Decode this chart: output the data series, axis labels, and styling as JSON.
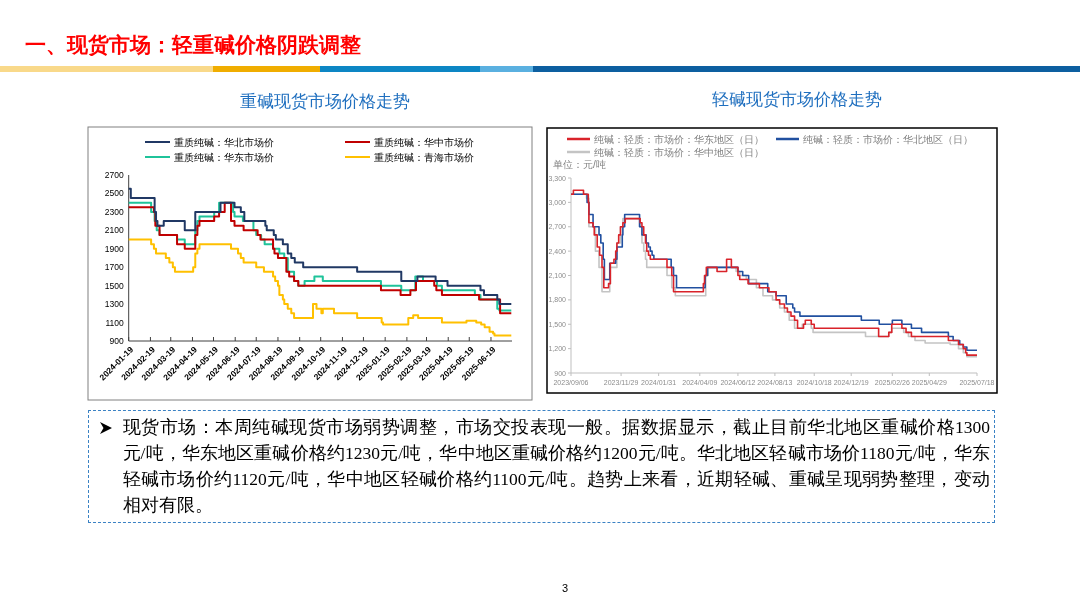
{
  "chart_data": [
    {
      "type": "other",
      "title": "一、现货市场：轻重碱价格阴跌调整"
    },
    {
      "type": "step",
      "title": "重碱现货市场价格走势",
      "xlim": [
        "2024-01-19",
        "2025-07-19"
      ],
      "xticks": [
        "2024-01-19",
        "2024-02-19",
        "2024-03-19",
        "2024-04-19",
        "2024-05-19",
        "2024-06-19",
        "2024-07-19",
        "2024-08-19",
        "2024-09-19",
        "2024-10-19",
        "2024-11-19",
        "2024-12-19",
        "2025-01-19",
        "2025-02-19",
        "2025-03-19",
        "2025-04-19",
        "2025-05-19",
        "2025-06-19"
      ],
      "ylim": [
        900,
        2700
      ],
      "yticks": [
        900,
        1100,
        1300,
        1500,
        1700,
        1900,
        2100,
        2300,
        2500,
        2700
      ],
      "legend": "top",
      "series": [
        {
          "name": "重质纯碱：华北市场价",
          "color": "#203864",
          "x": [
            "2024-01-19",
            "2024-01-22",
            "2024-02-25",
            "2024-02-27",
            "2024-02-29",
            "2024-03-09",
            "2024-04-08",
            "2024-04-23",
            "2024-05-29",
            "2024-06-18",
            "2024-06-27",
            "2024-07-02",
            "2024-08-01",
            "2024-08-03",
            "2024-08-13",
            "2024-08-16",
            "2024-08-26",
            "2024-09-02",
            "2024-09-07",
            "2024-09-12",
            "2024-09-24",
            "2024-12-10",
            "2025-02-11",
            "2025-03-06",
            "2025-04-01",
            "2025-04-18",
            "2025-06-04",
            "2025-06-09",
            "2025-06-28",
            "2025-07-01",
            "2025-07-18"
          ],
          "values": [
            2550,
            2450,
            2300,
            2200,
            2150,
            2200,
            2100,
            2300,
            2400,
            2350,
            2300,
            2200,
            2150,
            2100,
            2050,
            2000,
            1950,
            1850,
            1800,
            1750,
            1700,
            1650,
            1550,
            1600,
            1550,
            1500,
            1450,
            1400,
            1350,
            1300,
            1300
          ]
        },
        {
          "name": "重质纯碱：华中市场价",
          "color": "#c00000",
          "x": [
            "2024-01-19",
            "2024-02-24",
            "2024-02-26",
            "2024-03-03",
            "2024-03-28",
            "2024-04-08",
            "2024-04-23",
            "2024-04-26",
            "2024-04-29",
            "2024-05-20",
            "2024-05-27",
            "2024-06-04",
            "2024-06-13",
            "2024-06-18",
            "2024-07-01",
            "2024-07-21",
            "2024-07-25",
            "2024-08-12",
            "2024-08-14",
            "2024-08-19",
            "2024-08-31",
            "2024-09-04",
            "2024-09-11",
            "2024-09-17",
            "2025-01-13",
            "2025-02-10",
            "2025-02-24",
            "2025-03-04",
            "2025-03-30",
            "2025-04-02",
            "2025-04-10",
            "2025-06-02",
            "2025-07-02",
            "2025-07-18"
          ],
          "values": [
            2350,
            2300,
            2150,
            2050,
            1950,
            1900,
            2050,
            2150,
            2200,
            2250,
            2300,
            2400,
            2200,
            2150,
            2100,
            2050,
            2000,
            1900,
            1850,
            1800,
            1650,
            1600,
            1550,
            1500,
            1450,
            1400,
            1450,
            1550,
            1500,
            1450,
            1400,
            1350,
            1200,
            1200
          ]
        },
        {
          "name": "重质纯碱：华东市场价",
          "color": "#1fc39a",
          "x": [
            "2024-01-19",
            "2024-02-20",
            "2024-02-25",
            "2024-02-28",
            "2024-03-03",
            "2024-03-28",
            "2024-04-08",
            "2024-04-23",
            "2024-04-26",
            "2024-04-29",
            "2024-05-20",
            "2024-05-27",
            "2024-06-16",
            "2024-06-18",
            "2024-06-30",
            "2024-07-15",
            "2024-07-19",
            "2024-07-26",
            "2024-07-31",
            "2024-08-12",
            "2024-08-21",
            "2024-08-28",
            "2024-09-02",
            "2024-09-11",
            "2024-09-17",
            "2024-09-26",
            "2024-10-10",
            "2024-10-22",
            "2025-01-13",
            "2025-02-11",
            "2025-03-03",
            "2025-03-14",
            "2025-04-03",
            "2025-04-10",
            "2025-05-27",
            "2025-06-04",
            "2025-06-28",
            "2025-07-01",
            "2025-07-18"
          ],
          "values": [
            2400,
            2300,
            2200,
            2100,
            2050,
            2000,
            1950,
            2100,
            2200,
            2250,
            2300,
            2400,
            2300,
            2250,
            2200,
            2100,
            2050,
            2000,
            1950,
            1900,
            1850,
            1800,
            1650,
            1550,
            1500,
            1550,
            1600,
            1550,
            1500,
            1450,
            1600,
            1550,
            1500,
            1450,
            1400,
            1350,
            1250,
            1230,
            1230
          ]
        },
        {
          "name": "重质纯碱：青海市场价",
          "color": "#ffc000",
          "x": [
            "2024-01-19",
            "2024-02-20",
            "2024-02-24",
            "2024-02-27",
            "2024-03-12",
            "2024-03-17",
            "2024-03-22",
            "2024-03-25",
            "2024-04-20",
            "2024-04-23",
            "2024-04-26",
            "2024-04-29",
            "2024-06-13",
            "2024-06-23",
            "2024-06-27",
            "2024-07-01",
            "2024-07-19",
            "2024-07-30",
            "2024-08-12",
            "2024-08-15",
            "2024-08-19",
            "2024-08-21",
            "2024-08-26",
            "2024-08-28",
            "2024-09-02",
            "2024-09-07",
            "2024-09-11",
            "2024-10-08",
            "2024-10-13",
            "2024-10-20",
            "2024-10-22",
            "2024-11-07",
            "2024-12-10",
            "2025-01-14",
            "2025-01-16",
            "2025-02-21",
            "2025-02-28",
            "2025-03-07",
            "2025-04-10",
            "2025-05-15",
            "2025-05-29",
            "2025-06-05",
            "2025-06-10",
            "2025-06-17",
            "2025-06-22",
            "2025-06-24",
            "2025-07-18"
          ],
          "values": [
            2000,
            1950,
            1900,
            1850,
            1800,
            1750,
            1700,
            1650,
            1700,
            1850,
            1900,
            1950,
            1900,
            1850,
            1800,
            1750,
            1700,
            1650,
            1600,
            1550,
            1500,
            1400,
            1350,
            1300,
            1250,
            1200,
            1150,
            1300,
            1250,
            1200,
            1250,
            1200,
            1150,
            1100,
            1080,
            1150,
            1180,
            1150,
            1100,
            1120,
            1100,
            1080,
            1050,
            1000,
            980,
            960,
            960
          ]
        }
      ]
    },
    {
      "type": "step",
      "title": "轻碱现货市场价格走势",
      "ylabel": "单位：元/吨",
      "xlim": [
        "2023-09-06",
        "2025-07-18"
      ],
      "xticks": [
        {
          "value": "2023-09-06",
          "label": "2023/09/06"
        },
        {
          "value": "2023-11-29",
          "label": "2023/11/29"
        },
        {
          "value": "2024-01-31",
          "label": "2024/01/31"
        },
        {
          "value": "2024-04-09",
          "label": "2024/04/09"
        },
        {
          "value": "2024-06-12",
          "label": "2024/06/12"
        },
        {
          "value": "2024-08-13",
          "label": "2024/08/13"
        },
        {
          "value": "2024-10-18",
          "label": "2024/10/18"
        },
        {
          "value": "2024-12-19",
          "label": "2024/12/19"
        },
        {
          "value": "2025-02-26",
          "label": "2025/02/26"
        },
        {
          "value": "2025-04-29",
          "label": "2025/04/29"
        },
        {
          "value": "2025-07-18",
          "label": "2025/07/18"
        }
      ],
      "ylim": [
        900,
        3300
      ],
      "yticks": [
        900,
        {
          "value": 1200,
          "label": "1,200"
        },
        {
          "value": 1500,
          "label": "1,500"
        },
        {
          "value": 1800,
          "label": "1,800"
        },
        {
          "value": 2100,
          "label": "2,100"
        },
        {
          "value": 2400,
          "label": "2,400"
        },
        {
          "value": 2700,
          "label": "2,700"
        },
        {
          "value": 3000,
          "label": "3,000"
        },
        {
          "value": 3300,
          "label": "3,300"
        }
      ],
      "legend": "top",
      "series": [
        {
          "name": "纯碱：轻质：市场价：华东地区（日）",
          "color": "#d9232a",
          "x": [
            "2023-09-06",
            "2023-09-10",
            "2023-09-27",
            "2023-10-05",
            "2023-10-06",
            "2023-10-13",
            "2023-10-15",
            "2023-10-20",
            "2023-10-24",
            "2023-10-28",
            "2023-10-31",
            "2023-11-08",
            "2023-11-11",
            "2023-11-17",
            "2023-11-20",
            "2023-11-22",
            "2023-11-25",
            "2023-11-28",
            "2023-12-02",
            "2023-12-06",
            "2023-12-31",
            "2024-01-03",
            "2024-01-06",
            "2024-01-09",
            "2024-01-11",
            "2024-01-14",
            "2024-01-17",
            "2024-02-14",
            "2024-02-22",
            "2024-02-25",
            "2024-04-15",
            "2024-04-17",
            "2024-04-20",
            "2024-05-08",
            "2024-05-24",
            "2024-06-01",
            "2024-06-12",
            "2024-06-15",
            "2024-06-29",
            "2024-07-18",
            "2024-08-03",
            "2024-08-15",
            "2024-08-21",
            "2024-08-29",
            "2024-09-03",
            "2024-09-09",
            "2024-09-15",
            "2024-09-20",
            "2024-09-30",
            "2024-10-03",
            "2024-10-13",
            "2024-10-18",
            "2025-02-03",
            "2025-02-20",
            "2025-02-25",
            "2025-03-14",
            "2025-03-21",
            "2025-03-30",
            "2025-05-31",
            "2025-06-17",
            "2025-06-25",
            "2025-06-29",
            "2025-07-01",
            "2025-07-18"
          ],
          "values": [
            3100,
            3150,
            3100,
            3000,
            2750,
            2700,
            2600,
            2450,
            2350,
            2200,
            1950,
            2000,
            2250,
            2300,
            2400,
            2500,
            2600,
            2700,
            2750,
            2800,
            2750,
            2700,
            2600,
            2500,
            2400,
            2350,
            2300,
            2200,
            2100,
            1900,
            2000,
            2100,
            2200,
            2150,
            2300,
            2200,
            2100,
            2050,
            2000,
            1950,
            1900,
            1800,
            1750,
            1700,
            1650,
            1600,
            1550,
            1450,
            1500,
            1550,
            1500,
            1450,
            1350,
            1400,
            1500,
            1450,
            1400,
            1350,
            1300,
            1250,
            1200,
            1150,
            1120,
            1120
          ]
        },
        {
          "name": "纯碱：轻质：市场价：华北地区（日）",
          "color": "#2150a0",
          "x": [
            "2023-09-06",
            "2023-10-03",
            "2023-10-06",
            "2023-10-13",
            "2023-10-23",
            "2023-10-26",
            "2023-10-30",
            "2023-11-01",
            "2023-11-10",
            "2023-11-20",
            "2023-11-22",
            "2023-12-01",
            "2023-12-02",
            "2023-12-05",
            "2023-12-30",
            "2024-01-03",
            "2024-01-10",
            "2024-01-14",
            "2024-01-17",
            "2024-01-20",
            "2024-01-23",
            "2024-02-21",
            "2024-02-25",
            "2024-03-01",
            "2024-04-18",
            "2024-04-22",
            "2024-06-12",
            "2024-06-20",
            "2024-06-30",
            "2024-08-01",
            "2024-08-15",
            "2024-09-01",
            "2024-09-12",
            "2024-09-15",
            "2024-09-24",
            "2025-01-05",
            "2025-02-04",
            "2025-02-26",
            "2025-03-14",
            "2025-03-30",
            "2025-04-16",
            "2025-05-31",
            "2025-06-08",
            "2025-06-19",
            "2025-06-25",
            "2025-07-01",
            "2025-07-18"
          ],
          "values": [
            3100,
            3000,
            2850,
            2700,
            2600,
            2500,
            2300,
            2050,
            2250,
            2300,
            2450,
            2600,
            2700,
            2850,
            2700,
            2600,
            2500,
            2450,
            2400,
            2350,
            2300,
            2200,
            2100,
            1950,
            2100,
            2200,
            2150,
            2100,
            2000,
            1900,
            1850,
            1750,
            1700,
            1650,
            1600,
            1550,
            1500,
            1550,
            1500,
            1450,
            1400,
            1350,
            1300,
            1250,
            1220,
            1180,
            1180
          ]
        },
        {
          "name": "纯碱：轻质：市场价：华中地区（日）",
          "color": "#c4c4c4",
          "x": [
            "2023-09-06",
            "2023-10-02",
            "2023-10-06",
            "2023-10-17",
            "2023-10-23",
            "2023-10-28",
            "2023-11-10",
            "2023-11-11",
            "2023-11-22",
            "2023-11-28",
            "2023-12-02",
            "2023-12-31",
            "2024-01-03",
            "2024-01-06",
            "2024-01-09",
            "2024-01-11",
            "2024-02-14",
            "2024-02-22",
            "2024-02-28",
            "2024-04-19",
            "2024-04-23",
            "2024-06-09",
            "2024-06-15",
            "2024-06-26",
            "2024-07-13",
            "2024-07-24",
            "2024-08-09",
            "2024-08-21",
            "2024-08-29",
            "2024-09-06",
            "2024-09-15",
            "2024-09-28",
            "2024-10-13",
            "2024-10-16",
            "2025-01-12",
            "2025-02-20",
            "2025-02-25",
            "2025-03-17",
            "2025-03-25",
            "2025-04-05",
            "2025-04-22",
            "2025-06-03",
            "2025-06-17",
            "2025-06-25",
            "2025-07-01",
            "2025-07-18"
          ],
          "values": [
            3100,
            3050,
            2700,
            2400,
            2200,
            1900,
            2000,
            2200,
            2500,
            2700,
            2800,
            2700,
            2500,
            2400,
            2300,
            2200,
            2100,
            1950,
            1850,
            2100,
            2200,
            2150,
            2100,
            2050,
            1950,
            1850,
            1800,
            1700,
            1650,
            1550,
            1450,
            1500,
            1450,
            1400,
            1350,
            1400,
            1450,
            1400,
            1350,
            1300,
            1270,
            1250,
            1200,
            1150,
            1100,
            1100
          ]
        }
      ]
    },
    {
      "type": "other",
      "annotations": [
        "现货市场：本周纯碱现货市场弱势调整，市场交投表现一般。据数据显示，截止目前华北地区重碱价格1300元/吨，华东地区重碱价格约1230元/吨，华中地区重碱价格约1200元/吨。华北地区轻碱市场价1180元/吨，华东轻碱市场价约1120元/吨，华中地区轻碱价格约1100元/吨。趋势上来看，近期轻碱、重碱呈现弱势整理，变动相对有限。",
        "3"
      ]
    }
  ]
}
